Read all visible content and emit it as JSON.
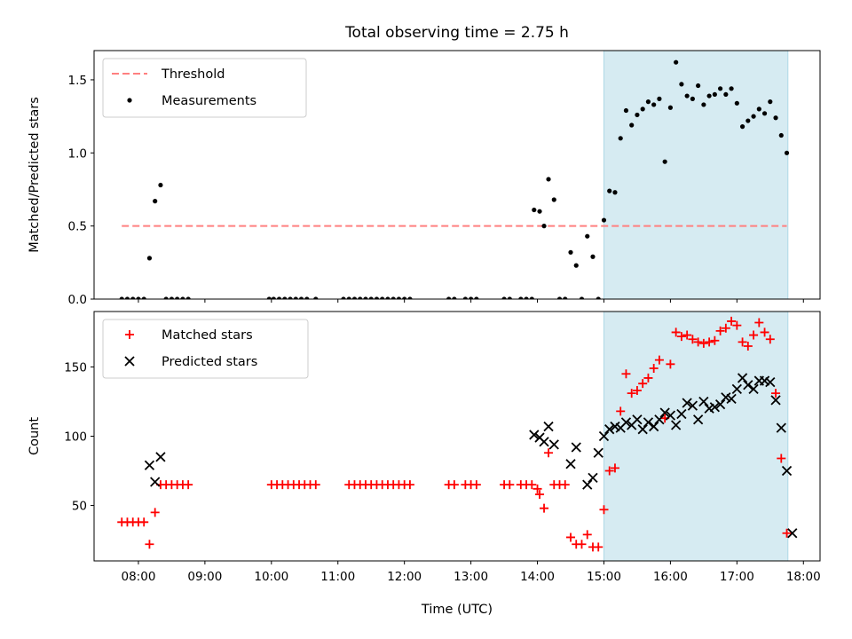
{
  "chart_data": {
    "title": "Total observing time = 2.75 h",
    "x_label": "Time (UTC)",
    "x_ticks": [
      "08:00",
      "09:00",
      "10:00",
      "11:00",
      "12:00",
      "13:00",
      "14:00",
      "15:00",
      "16:00",
      "17:00",
      "18:00"
    ],
    "x_range": [
      "07:20",
      "18:15"
    ],
    "observing_window": {
      "start": "15:00",
      "end": "17:46",
      "color": "#add8e6"
    },
    "panels": [
      {
        "type": "scatter",
        "ylabel": "Matched/Predicted stars",
        "ylim": [
          0,
          1.7
        ],
        "yticks": [
          "0.0",
          "0.5",
          "1.0",
          "1.5"
        ],
        "legend_position": "top-left",
        "series": [
          {
            "name": "Threshold",
            "kind": "line",
            "color": "#ff8080",
            "style": "dashed",
            "y": 0.5,
            "x_start": "07:45",
            "x_end": "17:45"
          },
          {
            "name": "Measurements",
            "kind": "scatter",
            "color": "#000000",
            "marker": "dot",
            "points": [
              [
                "07:45",
                0
              ],
              [
                "07:50",
                0
              ],
              [
                "07:55",
                0
              ],
              [
                "08:00",
                0
              ],
              [
                "08:05",
                0
              ],
              [
                "08:10",
                0.28
              ],
              [
                "08:15",
                0.67
              ],
              [
                "08:20",
                0.78
              ],
              [
                "08:25",
                0
              ],
              [
                "08:30",
                0
              ],
              [
                "08:35",
                0
              ],
              [
                "08:40",
                0
              ],
              [
                "08:45",
                0
              ],
              [
                "09:58",
                0
              ],
              [
                "10:02",
                0
              ],
              [
                "10:07",
                0
              ],
              [
                "10:12",
                0
              ],
              [
                "10:17",
                0
              ],
              [
                "10:22",
                0
              ],
              [
                "10:27",
                0
              ],
              [
                "10:32",
                0
              ],
              [
                "10:40",
                0
              ],
              [
                "11:05",
                0
              ],
              [
                "11:10",
                0
              ],
              [
                "11:15",
                0
              ],
              [
                "11:20",
                0
              ],
              [
                "11:25",
                0
              ],
              [
                "11:30",
                0
              ],
              [
                "11:35",
                0
              ],
              [
                "11:40",
                0
              ],
              [
                "11:45",
                0
              ],
              [
                "11:50",
                0
              ],
              [
                "11:55",
                0
              ],
              [
                "12:00",
                0
              ],
              [
                "12:05",
                0
              ],
              [
                "12:40",
                0
              ],
              [
                "12:45",
                0
              ],
              [
                "12:55",
                0
              ],
              [
                "13:00",
                0
              ],
              [
                "13:05",
                0
              ],
              [
                "13:30",
                0
              ],
              [
                "13:35",
                0
              ],
              [
                "13:45",
                0
              ],
              [
                "13:50",
                0
              ],
              [
                "13:55",
                0
              ],
              [
                "13:57",
                0.61
              ],
              [
                "14:02",
                0.6
              ],
              [
                "14:06",
                0.5
              ],
              [
                "14:10",
                0.82
              ],
              [
                "14:15",
                0.68
              ],
              [
                "14:20",
                0
              ],
              [
                "14:25",
                0
              ],
              [
                "14:30",
                0.32
              ],
              [
                "14:35",
                0.23
              ],
              [
                "14:40",
                0
              ],
              [
                "14:45",
                0.43
              ],
              [
                "14:50",
                0.29
              ],
              [
                "14:55",
                0
              ],
              [
                "15:00",
                0.54
              ],
              [
                "15:05",
                0.74
              ],
              [
                "15:10",
                0.73
              ],
              [
                "15:15",
                1.1
              ],
              [
                "15:20",
                1.29
              ],
              [
                "15:25",
                1.19
              ],
              [
                "15:30",
                1.26
              ],
              [
                "15:35",
                1.3
              ],
              [
                "15:40",
                1.35
              ],
              [
                "15:45",
                1.33
              ],
              [
                "15:50",
                1.37
              ],
              [
                "15:55",
                0.94
              ],
              [
                "16:00",
                1.31
              ],
              [
                "16:05",
                1.62
              ],
              [
                "16:10",
                1.47
              ],
              [
                "16:15",
                1.39
              ],
              [
                "16:20",
                1.37
              ],
              [
                "16:25",
                1.46
              ],
              [
                "16:30",
                1.33
              ],
              [
                "16:35",
                1.39
              ],
              [
                "16:40",
                1.4
              ],
              [
                "16:45",
                1.44
              ],
              [
                "16:50",
                1.4
              ],
              [
                "16:55",
                1.44
              ],
              [
                "17:00",
                1.34
              ],
              [
                "17:05",
                1.18
              ],
              [
                "17:10",
                1.22
              ],
              [
                "17:15",
                1.25
              ],
              [
                "17:20",
                1.3
              ],
              [
                "17:25",
                1.27
              ],
              [
                "17:30",
                1.35
              ],
              [
                "17:35",
                1.24
              ],
              [
                "17:40",
                1.12
              ],
              [
                "17:45",
                1.0
              ]
            ]
          }
        ]
      },
      {
        "type": "scatter",
        "ylabel": "Count",
        "ylim": [
          10,
          190
        ],
        "yticks": [
          "50",
          "100",
          "150"
        ],
        "legend_position": "top-left",
        "series": [
          {
            "name": "Matched stars",
            "kind": "scatter",
            "color": "#ff0000",
            "marker": "plus",
            "points": [
              [
                "07:45",
                38
              ],
              [
                "07:50",
                38
              ],
              [
                "07:55",
                38
              ],
              [
                "08:00",
                38
              ],
              [
                "08:05",
                38
              ],
              [
                "08:10",
                22
              ],
              [
                "08:15",
                45
              ],
              [
                "08:20",
                65
              ],
              [
                "08:25",
                65
              ],
              [
                "08:30",
                65
              ],
              [
                "08:35",
                65
              ],
              [
                "08:40",
                65
              ],
              [
                "08:45",
                65
              ],
              [
                "10:00",
                65
              ],
              [
                "10:05",
                65
              ],
              [
                "10:10",
                65
              ],
              [
                "10:15",
                65
              ],
              [
                "10:20",
                65
              ],
              [
                "10:25",
                65
              ],
              [
                "10:30",
                65
              ],
              [
                "10:35",
                65
              ],
              [
                "10:40",
                65
              ],
              [
                "11:10",
                65
              ],
              [
                "11:15",
                65
              ],
              [
                "11:20",
                65
              ],
              [
                "11:25",
                65
              ],
              [
                "11:30",
                65
              ],
              [
                "11:35",
                65
              ],
              [
                "11:40",
                65
              ],
              [
                "11:45",
                65
              ],
              [
                "11:50",
                65
              ],
              [
                "11:55",
                65
              ],
              [
                "12:00",
                65
              ],
              [
                "12:05",
                65
              ],
              [
                "12:40",
                65
              ],
              [
                "12:45",
                65
              ],
              [
                "12:55",
                65
              ],
              [
                "13:00",
                65
              ],
              [
                "13:05",
                65
              ],
              [
                "13:30",
                65
              ],
              [
                "13:35",
                65
              ],
              [
                "13:45",
                65
              ],
              [
                "13:50",
                65
              ],
              [
                "13:55",
                65
              ],
              [
                "14:00",
                62
              ],
              [
                "14:02",
                58
              ],
              [
                "14:06",
                48
              ],
              [
                "14:10",
                88
              ],
              [
                "14:15",
                65
              ],
              [
                "14:20",
                65
              ],
              [
                "14:25",
                65
              ],
              [
                "14:30",
                27
              ],
              [
                "14:35",
                22
              ],
              [
                "14:40",
                22
              ],
              [
                "14:45",
                29
              ],
              [
                "14:50",
                20
              ],
              [
                "14:55",
                20
              ],
              [
                "15:00",
                47
              ],
              [
                "15:05",
                75
              ],
              [
                "15:10",
                77
              ],
              [
                "15:15",
                118
              ],
              [
                "15:20",
                145
              ],
              [
                "15:25",
                131
              ],
              [
                "15:30",
                133
              ],
              [
                "15:35",
                138
              ],
              [
                "15:40",
                142
              ],
              [
                "15:45",
                149
              ],
              [
                "15:50",
                155
              ],
              [
                "15:55",
                113
              ],
              [
                "16:00",
                152
              ],
              [
                "16:05",
                175
              ],
              [
                "16:10",
                172
              ],
              [
                "16:15",
                173
              ],
              [
                "16:20",
                170
              ],
              [
                "16:25",
                168
              ],
              [
                "16:30",
                167
              ],
              [
                "16:35",
                168
              ],
              [
                "16:40",
                169
              ],
              [
                "16:45",
                176
              ],
              [
                "16:50",
                178
              ],
              [
                "16:55",
                183
              ],
              [
                "17:00",
                180
              ],
              [
                "17:05",
                168
              ],
              [
                "17:10",
                165
              ],
              [
                "17:15",
                173
              ],
              [
                "17:20",
                182
              ],
              [
                "17:25",
                175
              ],
              [
                "17:30",
                170
              ],
              [
                "17:35",
                131
              ],
              [
                "17:40",
                84
              ],
              [
                "17:45",
                30
              ]
            ]
          },
          {
            "name": "Predicted stars",
            "kind": "scatter",
            "color": "#000000",
            "marker": "x",
            "points": [
              [
                "08:10",
                79
              ],
              [
                "08:15",
                67
              ],
              [
                "08:20",
                85
              ],
              [
                "13:57",
                101
              ],
              [
                "14:02",
                99
              ],
              [
                "14:06",
                96
              ],
              [
                "14:10",
                107
              ],
              [
                "14:15",
                94
              ],
              [
                "14:30",
                80
              ],
              [
                "14:35",
                92
              ],
              [
                "14:45",
                65
              ],
              [
                "14:50",
                70
              ],
              [
                "14:55",
                88
              ],
              [
                "15:00",
                100
              ],
              [
                "15:05",
                105
              ],
              [
                "15:10",
                107
              ],
              [
                "15:15",
                106
              ],
              [
                "15:20",
                110
              ],
              [
                "15:25",
                108
              ],
              [
                "15:30",
                112
              ],
              [
                "15:35",
                105
              ],
              [
                "15:40",
                110
              ],
              [
                "15:45",
                107
              ],
              [
                "15:50",
                112
              ],
              [
                "15:55",
                117
              ],
              [
                "16:00",
                115
              ],
              [
                "16:05",
                108
              ],
              [
                "16:10",
                116
              ],
              [
                "16:15",
                124
              ],
              [
                "16:20",
                122
              ],
              [
                "16:25",
                112
              ],
              [
                "16:30",
                125
              ],
              [
                "16:35",
                120
              ],
              [
                "16:40",
                121
              ],
              [
                "16:45",
                123
              ],
              [
                "16:50",
                128
              ],
              [
                "16:55",
                127
              ],
              [
                "17:00",
                134
              ],
              [
                "17:05",
                142
              ],
              [
                "17:10",
                137
              ],
              [
                "17:15",
                134
              ],
              [
                "17:20",
                140
              ],
              [
                "17:25",
                140
              ],
              [
                "17:30",
                139
              ],
              [
                "17:35",
                126
              ],
              [
                "17:40",
                106
              ],
              [
                "17:45",
                75
              ],
              [
                "17:50",
                30
              ]
            ]
          }
        ]
      }
    ]
  }
}
